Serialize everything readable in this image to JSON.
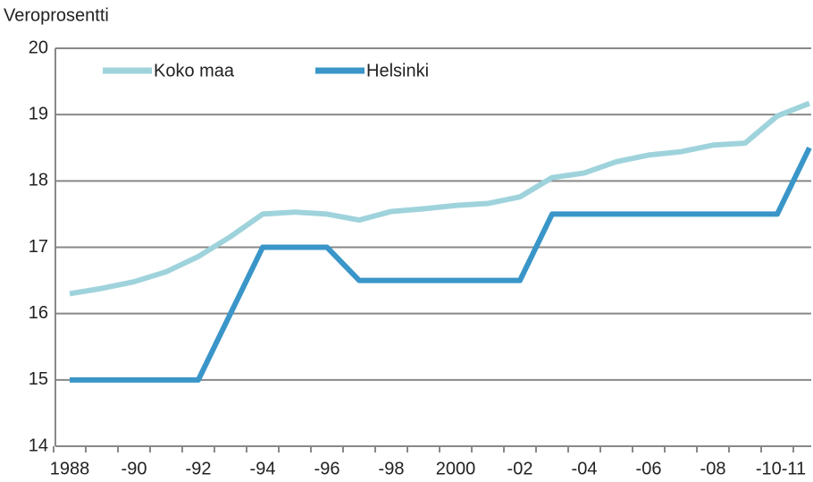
{
  "chart_data": {
    "type": "line",
    "y_axis_label": "Veroprosentti",
    "categories": [
      "1988",
      null,
      "-90",
      null,
      "-92",
      null,
      "-94",
      null,
      "-96",
      null,
      "-98",
      null,
      "2000",
      null,
      "-02",
      null,
      "-04",
      null,
      "-06",
      null,
      "-08",
      null,
      "-10-11",
      null
    ],
    "series": [
      {
        "name": "Koko maa",
        "color": "#9fd3dc",
        "values": [
          16.3,
          16.38,
          16.48,
          16.63,
          16.86,
          17.16,
          17.5,
          17.53,
          17.5,
          17.41,
          17.54,
          17.58,
          17.63,
          17.66,
          17.76,
          18.05,
          18.12,
          18.29,
          18.39,
          18.44,
          18.54,
          18.57,
          18.98,
          19.17
        ]
      },
      {
        "name": "Helsinki",
        "color": "#3a96c8",
        "values": [
          15,
          15,
          15,
          15,
          15,
          16,
          17,
          17,
          17,
          16.5,
          16.5,
          16.5,
          16.5,
          16.5,
          16.5,
          17.5,
          17.5,
          17.5,
          17.5,
          17.5,
          17.5,
          17.5,
          17.5,
          18.5
        ]
      }
    ],
    "ylim": [
      14,
      20
    ],
    "yticks": [
      14,
      15,
      16,
      17,
      18,
      19,
      20
    ],
    "grid": true
  }
}
